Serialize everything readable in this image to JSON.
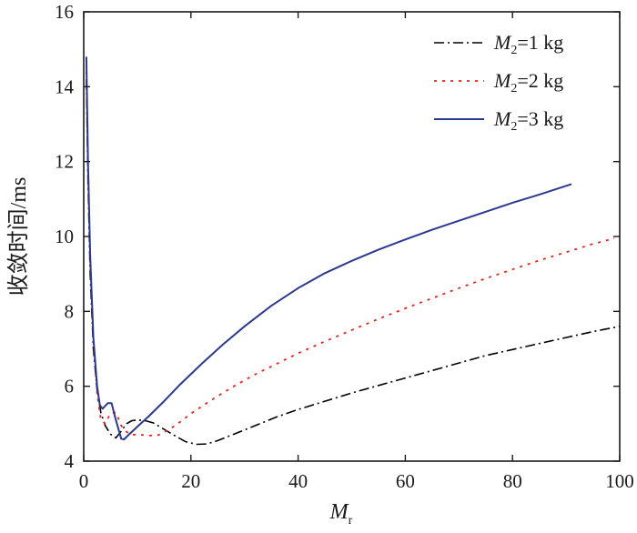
{
  "chart_data": {
    "type": "line",
    "title": "",
    "xlabel": {
      "symbol": "M",
      "subscript": "r"
    },
    "ylabel": "收敛时间/ms",
    "xlim": [
      0,
      100
    ],
    "ylim": [
      4,
      16
    ],
    "x_ticks": [
      0,
      20,
      40,
      60,
      80,
      100
    ],
    "y_ticks": [
      4,
      6,
      8,
      10,
      12,
      14,
      16
    ],
    "grid": false,
    "legend_position": "top-right",
    "series": [
      {
        "name": "M2 = 1 kg",
        "legend": {
          "symbol": "M",
          "subscript": "2",
          "text": "=1 kg"
        },
        "color": "#000000",
        "style": "dash-dot",
        "points": [
          [
            0.5,
            14.2
          ],
          [
            0.8,
            11.5
          ],
          [
            1.2,
            9.0
          ],
          [
            1.8,
            7.0
          ],
          [
            2.5,
            5.9
          ],
          [
            3.2,
            5.3
          ],
          [
            4.0,
            4.95
          ],
          [
            5.0,
            4.72
          ],
          [
            6.0,
            4.62
          ],
          [
            7.0,
            4.8
          ],
          [
            8.0,
            5.0
          ],
          [
            9.0,
            5.08
          ],
          [
            10.0,
            5.1
          ],
          [
            11.5,
            5.08
          ],
          [
            13.0,
            5.02
          ],
          [
            15.0,
            4.85
          ],
          [
            17.0,
            4.68
          ],
          [
            19.0,
            4.52
          ],
          [
            21.0,
            4.45
          ],
          [
            23.0,
            4.46
          ],
          [
            25.0,
            4.55
          ],
          [
            28.0,
            4.72
          ],
          [
            32.0,
            4.95
          ],
          [
            36.0,
            5.18
          ],
          [
            40.0,
            5.38
          ],
          [
            45.0,
            5.6
          ],
          [
            50.0,
            5.82
          ],
          [
            55.0,
            6.02
          ],
          [
            60.0,
            6.22
          ],
          [
            65.0,
            6.42
          ],
          [
            70.0,
            6.62
          ],
          [
            75.0,
            6.82
          ],
          [
            80.0,
            6.98
          ],
          [
            85.0,
            7.14
          ],
          [
            90.0,
            7.3
          ],
          [
            95.0,
            7.46
          ],
          [
            100.0,
            7.6
          ]
        ]
      },
      {
        "name": "M2 = 2 kg",
        "legend": {
          "symbol": "M",
          "subscript": "2",
          "text": "=2 kg"
        },
        "color": "#e8231b",
        "style": "dotted",
        "points": [
          [
            0.5,
            14.4
          ],
          [
            0.8,
            11.8
          ],
          [
            1.2,
            9.3
          ],
          [
            1.8,
            7.2
          ],
          [
            2.5,
            5.8
          ],
          [
            3.2,
            5.1
          ],
          [
            4.0,
            5.0
          ],
          [
            5.0,
            5.28
          ],
          [
            6.0,
            5.3
          ],
          [
            7.0,
            4.95
          ],
          [
            8.0,
            4.78
          ],
          [
            9.0,
            4.7
          ],
          [
            10.0,
            4.72
          ],
          [
            12.0,
            4.68
          ],
          [
            14.0,
            4.7
          ],
          [
            16.0,
            4.85
          ],
          [
            18.0,
            5.05
          ],
          [
            20.0,
            5.27
          ],
          [
            24.0,
            5.65
          ],
          [
            28.0,
            6.0
          ],
          [
            32.0,
            6.32
          ],
          [
            36.0,
            6.6
          ],
          [
            40.0,
            6.88
          ],
          [
            45.0,
            7.2
          ],
          [
            50.0,
            7.5
          ],
          [
            55.0,
            7.8
          ],
          [
            60.0,
            8.08
          ],
          [
            65.0,
            8.35
          ],
          [
            70.0,
            8.62
          ],
          [
            75.0,
            8.88
          ],
          [
            80.0,
            9.12
          ],
          [
            85.0,
            9.36
          ],
          [
            90.0,
            9.58
          ],
          [
            95.0,
            9.8
          ],
          [
            99.0,
            9.95
          ]
        ]
      },
      {
        "name": "M2 = 3 kg",
        "legend": {
          "symbol": "M",
          "subscript": "2",
          "text": "=3 kg"
        },
        "color": "#2b3990",
        "style": "solid",
        "points": [
          [
            0.5,
            14.8
          ],
          [
            0.8,
            12.0
          ],
          [
            1.2,
            9.5
          ],
          [
            1.8,
            7.3
          ],
          [
            2.5,
            6.0
          ],
          [
            3.0,
            5.5
          ],
          [
            3.5,
            5.4
          ],
          [
            4.5,
            5.55
          ],
          [
            5.2,
            5.55
          ],
          [
            6.0,
            5.1
          ],
          [
            7.0,
            4.6
          ],
          [
            7.5,
            4.58
          ],
          [
            8.5,
            4.72
          ],
          [
            10.0,
            4.92
          ],
          [
            12.0,
            5.18
          ],
          [
            15.0,
            5.6
          ],
          [
            18.0,
            6.05
          ],
          [
            22.0,
            6.6
          ],
          [
            26.0,
            7.12
          ],
          [
            30.0,
            7.6
          ],
          [
            35.0,
            8.15
          ],
          [
            40.0,
            8.62
          ],
          [
            45.0,
            9.02
          ],
          [
            50.0,
            9.35
          ],
          [
            55.0,
            9.65
          ],
          [
            60.0,
            9.92
          ],
          [
            65.0,
            10.18
          ],
          [
            70.0,
            10.42
          ],
          [
            75.0,
            10.66
          ],
          [
            80.0,
            10.9
          ],
          [
            85.0,
            11.12
          ],
          [
            91.0,
            11.4
          ]
        ]
      }
    ]
  }
}
